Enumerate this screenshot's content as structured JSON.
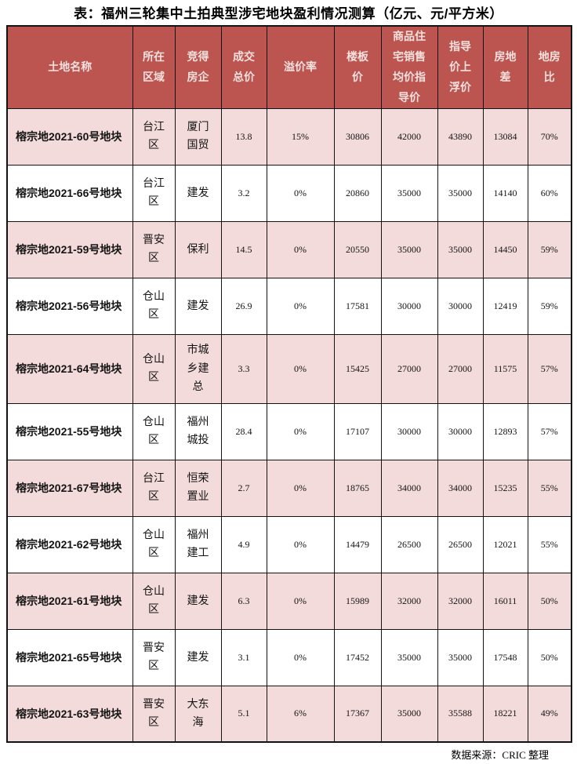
{
  "title": "表：福州三轮集中土拍典型涉宅地块盈利情况测算（亿元、元/平方米）",
  "source_note": "数据来源：CRIC 整理",
  "chart_data": {
    "type": "table",
    "title": "表：福州三轮集中土拍典型涉宅地块盈利情况测算（亿元、元/平方米）",
    "units": "亿元、元/平方米",
    "columns": [
      "土地名称",
      "所在区域",
      "竞得房企",
      "成交总价",
      "溢价率",
      "楼板价",
      "商品住宅销售均价指导价",
      "指导价上浮价",
      "房地差",
      "地房比"
    ],
    "rows": [
      [
        "榕宗地2021-60号地块",
        "台江区",
        "厦门国贸",
        "13.8",
        "15%",
        "30806",
        "42000",
        "43890",
        "13084",
        "70%"
      ],
      [
        "榕宗地2021-66号地块",
        "台江区",
        "建发",
        "3.2",
        "0%",
        "20860",
        "35000",
        "35000",
        "14140",
        "60%"
      ],
      [
        "榕宗地2021-59号地块",
        "晋安区",
        "保利",
        "14.5",
        "0%",
        "20550",
        "35000",
        "35000",
        "14450",
        "59%"
      ],
      [
        "榕宗地2021-56号地块",
        "仓山区",
        "建发",
        "26.9",
        "0%",
        "17581",
        "30000",
        "30000",
        "12419",
        "59%"
      ],
      [
        "榕宗地2021-64号地块",
        "仓山区",
        "市城乡建总",
        "3.3",
        "0%",
        "15425",
        "27000",
        "27000",
        "11575",
        "57%"
      ],
      [
        "榕宗地2021-55号地块",
        "仓山区",
        "福州城投",
        "28.4",
        "0%",
        "17107",
        "30000",
        "30000",
        "12893",
        "57%"
      ],
      [
        "榕宗地2021-67号地块",
        "台江区",
        "恒荣置业",
        "2.7",
        "0%",
        "18765",
        "34000",
        "34000",
        "15235",
        "55%"
      ],
      [
        "榕宗地2021-62号地块",
        "仓山区",
        "福州建工",
        "4.9",
        "0%",
        "14479",
        "26500",
        "26500",
        "12021",
        "55%"
      ],
      [
        "榕宗地2021-61号地块",
        "仓山区",
        "建发",
        "6.3",
        "0%",
        "15989",
        "32000",
        "32000",
        "16011",
        "50%"
      ],
      [
        "榕宗地2021-65号地块",
        "晋安区",
        "建发",
        "3.1",
        "0%",
        "17452",
        "35000",
        "35000",
        "17548",
        "50%"
      ],
      [
        "榕宗地2021-63号地块",
        "晋安区",
        "大东海",
        "5.1",
        "6%",
        "17367",
        "35000",
        "35588",
        "18221",
        "49%"
      ]
    ],
    "legend_position": "none",
    "grid": true
  },
  "colors": {
    "header_bg": "#bc544f",
    "header_text": "#f3e1df",
    "row_alt_bg": "#f2dbda",
    "row_bg": "#ffffff",
    "border": "#131313",
    "text": "#141414"
  }
}
